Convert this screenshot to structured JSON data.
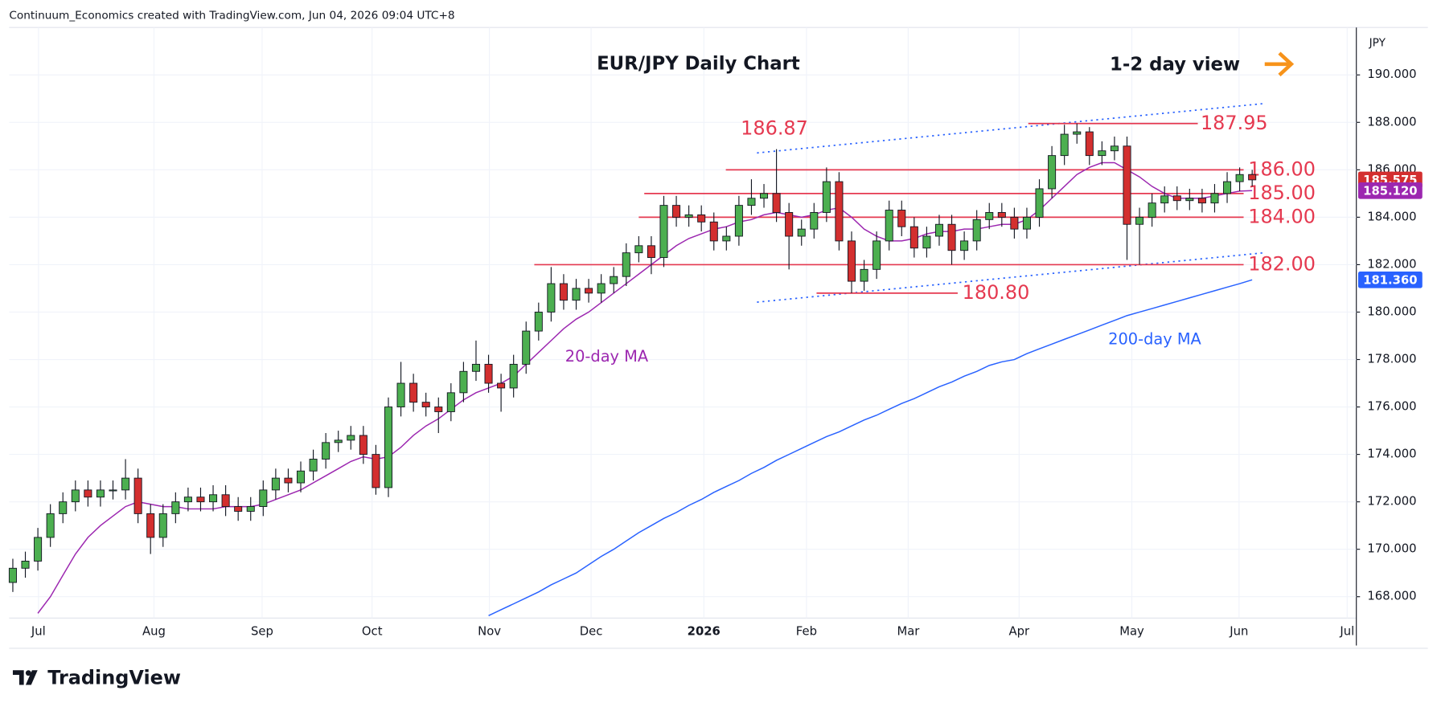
{
  "chart_data": {
    "type": "candlestick",
    "attribution": "Continuum_Economics created with TradingView.com, Jun 04, 2026 09:04 UTC+8",
    "title": "EUR/JPY Daily Chart",
    "subtitle": "1-2 day view",
    "currency": "JPY",
    "logo": "TradingView",
    "xtick_labels": [
      "Jul",
      "Aug",
      "Sep",
      "Oct",
      "Nov",
      "Dec",
      "2026",
      "Feb",
      "Mar",
      "Apr",
      "May",
      "Jun",
      "Jul"
    ],
    "ylim": [
      167.1,
      192
    ],
    "yticks": [
      {
        "value": 168,
        "label": "168.000"
      },
      {
        "value": 170,
        "label": "170.000"
      },
      {
        "value": 172,
        "label": "172.000"
      },
      {
        "value": 174,
        "label": "174.000"
      },
      {
        "value": 176,
        "label": "176.000"
      },
      {
        "value": 178,
        "label": "178.000"
      },
      {
        "value": 180,
        "label": "180.000"
      },
      {
        "value": 182,
        "label": "182.000"
      },
      {
        "value": 184,
        "label": "184.000"
      },
      {
        "value": 186,
        "label": "186.000"
      },
      {
        "value": 188,
        "label": "188.000"
      },
      {
        "value": 190,
        "label": "190.000"
      }
    ],
    "grid": true,
    "up_color": "#4caf50",
    "down_color": "#d32f2f",
    "open": [
      168.6,
      169.2,
      169.5,
      170.5,
      171.5,
      172.0,
      172.5,
      172.2,
      172.5,
      172.5,
      173.0,
      171.5,
      170.5,
      171.5,
      172.0,
      172.2,
      172.0,
      172.3,
      171.8,
      171.6,
      171.8,
      172.5,
      173.0,
      172.8,
      173.3,
      173.8,
      174.5,
      174.6,
      174.8,
      174.0,
      172.6,
      176.0,
      177.0,
      176.2,
      176.0,
      175.8,
      176.6,
      177.5,
      177.8,
      177.0,
      176.8,
      177.8,
      179.2,
      180.0,
      181.2,
      180.5,
      181.0,
      180.8,
      181.2,
      181.5,
      182.5,
      182.8,
      182.3,
      184.5,
      184.0,
      184.1,
      183.8,
      183.0,
      183.2,
      184.5,
      184.8,
      185.0,
      184.2,
      183.2,
      183.5,
      184.2,
      185.5,
      183.0,
      181.3,
      181.8,
      183.0,
      184.3,
      183.6,
      182.7,
      183.2,
      183.7,
      182.6,
      183.0,
      183.9,
      184.2,
      184.0,
      183.5,
      184.0,
      185.2,
      186.6,
      187.5,
      187.6,
      186.6,
      186.8,
      187.0,
      183.7,
      184.0,
      184.6,
      184.9,
      184.7,
      184.8,
      184.6,
      185.0,
      185.5,
      185.8
    ],
    "high": [
      169.6,
      169.9,
      170.9,
      171.9,
      172.4,
      172.9,
      172.9,
      172.9,
      172.9,
      173.8,
      173.4,
      171.9,
      171.9,
      172.4,
      172.6,
      172.6,
      172.7,
      172.7,
      172.2,
      172.2,
      172.9,
      173.4,
      173.4,
      173.7,
      174.2,
      174.9,
      175.0,
      175.2,
      175.2,
      174.4,
      176.4,
      177.9,
      177.4,
      176.6,
      176.4,
      177.0,
      177.9,
      178.8,
      178.2,
      177.4,
      178.2,
      179.6,
      180.4,
      181.9,
      181.6,
      181.4,
      181.4,
      181.6,
      181.9,
      182.9,
      183.2,
      183.2,
      184.9,
      184.9,
      184.5,
      184.5,
      184.2,
      183.6,
      184.9,
      185.6,
      185.4,
      186.87,
      184.6,
      183.9,
      184.6,
      186.1,
      185.9,
      183.4,
      182.2,
      183.4,
      184.7,
      184.7,
      184.0,
      183.6,
      184.1,
      184.1,
      183.4,
      184.3,
      184.6,
      184.6,
      184.4,
      184.4,
      185.6,
      187.0,
      187.9,
      187.95,
      187.8,
      187.2,
      187.4,
      187.4,
      184.4,
      185.0,
      185.3,
      185.3,
      185.2,
      185.2,
      185.4,
      185.9,
      186.1,
      186.0
    ],
    "low": [
      168.2,
      168.8,
      169.1,
      170.1,
      171.1,
      171.6,
      171.8,
      171.8,
      172.1,
      172.1,
      171.1,
      169.8,
      170.1,
      171.1,
      171.6,
      171.6,
      171.6,
      171.4,
      171.2,
      171.2,
      171.4,
      172.1,
      172.4,
      172.4,
      172.9,
      173.4,
      174.1,
      174.2,
      173.6,
      172.3,
      172.2,
      175.6,
      175.8,
      175.6,
      174.9,
      175.4,
      176.2,
      177.1,
      176.6,
      175.8,
      176.4,
      177.4,
      178.8,
      179.6,
      180.1,
      180.1,
      180.4,
      180.4,
      180.8,
      181.1,
      182.1,
      181.6,
      181.9,
      183.6,
      183.6,
      183.4,
      182.6,
      182.6,
      182.8,
      184.1,
      184.4,
      183.8,
      181.8,
      182.8,
      183.1,
      183.8,
      182.6,
      180.8,
      180.9,
      181.4,
      182.6,
      183.2,
      182.3,
      182.3,
      182.8,
      182.0,
      182.2,
      182.6,
      183.5,
      183.6,
      183.1,
      183.1,
      183.6,
      184.8,
      186.2,
      187.1,
      186.2,
      186.2,
      186.4,
      182.2,
      182.0,
      183.6,
      184.2,
      184.3,
      184.3,
      184.2,
      184.2,
      184.6,
      185.1,
      185.3
    ],
    "close": [
      169.2,
      169.5,
      170.5,
      171.5,
      172.0,
      172.5,
      172.2,
      172.5,
      172.5,
      173.0,
      171.5,
      170.5,
      171.5,
      172.0,
      172.2,
      172.0,
      172.3,
      171.8,
      171.6,
      171.8,
      172.5,
      173.0,
      172.8,
      173.3,
      173.8,
      174.5,
      174.6,
      174.8,
      174.0,
      172.6,
      176.0,
      177.0,
      176.2,
      176.0,
      175.8,
      176.6,
      177.5,
      177.8,
      177.0,
      176.8,
      177.8,
      179.2,
      180.0,
      181.2,
      180.5,
      181.0,
      180.8,
      181.2,
      181.5,
      182.5,
      182.8,
      182.3,
      184.5,
      184.0,
      184.1,
      183.8,
      183.0,
      183.2,
      184.5,
      184.8,
      185.0,
      184.2,
      183.2,
      183.5,
      184.2,
      185.5,
      183.0,
      181.3,
      181.8,
      183.0,
      184.3,
      183.6,
      182.7,
      183.2,
      183.7,
      182.6,
      183.0,
      183.9,
      184.2,
      184.0,
      183.5,
      184.0,
      185.2,
      186.6,
      187.5,
      187.6,
      186.6,
      186.8,
      187.0,
      183.7,
      184.0,
      184.6,
      184.9,
      184.7,
      184.8,
      184.6,
      185.0,
      185.5,
      185.8,
      185.575
    ],
    "series": [
      {
        "name": "20-day MA",
        "color": "#9c27b0",
        "values": [
          null,
          null,
          167.3,
          168.0,
          168.9,
          169.8,
          170.5,
          171.0,
          171.4,
          171.8,
          172.0,
          171.9,
          171.8,
          171.8,
          171.7,
          171.7,
          171.7,
          171.8,
          171.8,
          171.8,
          171.9,
          172.1,
          172.3,
          172.5,
          172.8,
          173.1,
          173.4,
          173.7,
          173.9,
          173.8,
          173.9,
          174.3,
          174.8,
          175.2,
          175.5,
          175.9,
          176.3,
          176.6,
          176.8,
          177.0,
          177.3,
          177.8,
          178.3,
          178.8,
          179.3,
          179.7,
          180.0,
          180.4,
          180.8,
          181.2,
          181.6,
          182.0,
          182.4,
          182.8,
          183.1,
          183.3,
          183.5,
          183.6,
          183.8,
          183.9,
          184.1,
          184.2,
          184.1,
          184.0,
          184.1,
          184.3,
          184.4,
          184.0,
          183.5,
          183.2,
          183.0,
          183.0,
          183.1,
          183.3,
          183.4,
          183.4,
          183.5,
          183.5,
          183.6,
          183.7,
          183.7,
          183.9,
          184.3,
          184.8,
          185.3,
          185.8,
          186.1,
          186.3,
          186.3,
          186.0,
          185.7,
          185.3,
          185.0,
          184.8,
          184.8,
          184.8,
          184.9,
          185.0,
          185.1,
          185.12
        ]
      },
      {
        "name": "200-day MA",
        "color": "#2962ff",
        "values": [
          null,
          null,
          null,
          null,
          null,
          null,
          null,
          null,
          null,
          null,
          null,
          null,
          null,
          null,
          null,
          null,
          null,
          null,
          null,
          null,
          null,
          null,
          null,
          null,
          null,
          null,
          null,
          null,
          null,
          null,
          null,
          null,
          null,
          null,
          null,
          null,
          null,
          null,
          167.2,
          167.45,
          167.7,
          167.95,
          168.2,
          168.5,
          168.75,
          169.0,
          169.35,
          169.7,
          170.0,
          170.35,
          170.7,
          171.0,
          171.3,
          171.55,
          171.85,
          172.1,
          172.4,
          172.65,
          172.9,
          173.2,
          173.45,
          173.75,
          174.0,
          174.25,
          174.5,
          174.75,
          174.95,
          175.2,
          175.45,
          175.65,
          175.9,
          176.15,
          176.35,
          176.6,
          176.85,
          177.05,
          177.3,
          177.5,
          177.75,
          177.9,
          178.0,
          178.25,
          178.45,
          178.65,
          178.85,
          179.05,
          179.25,
          179.45,
          179.65,
          179.85,
          180.0,
          180.15,
          180.3,
          180.45,
          180.6,
          180.75,
          180.9,
          181.05,
          181.2,
          181.36
        ]
      }
    ],
    "price_tags": [
      {
        "value": 185.575,
        "label": "185.575",
        "color": "#d32f2f"
      },
      {
        "value": 185.12,
        "label": "185.120",
        "color": "#9c27b0"
      },
      {
        "value": 181.36,
        "label": "181.360",
        "color": "#2962ff"
      }
    ],
    "levels": [
      {
        "value": 187.95,
        "label": "187.95"
      },
      {
        "value": 186,
        "label": "186.00"
      },
      {
        "value": 185,
        "label": "185.00"
      },
      {
        "value": 184,
        "label": "184.00"
      },
      {
        "value": 182,
        "label": "182.00"
      },
      {
        "value": 180.8,
        "label": "180.80"
      },
      {
        "value": 186.87,
        "label": "186.87"
      }
    ],
    "level_color": "#e53950"
  }
}
